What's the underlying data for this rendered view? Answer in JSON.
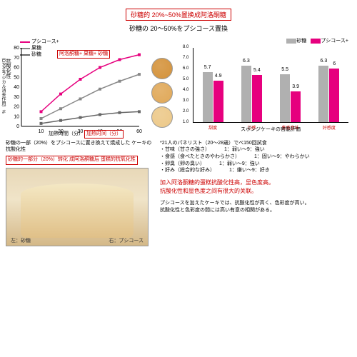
{
  "title_cn": "砂糖的 20%~50%置换成阿洛酮糖",
  "title_jp": "砂糖の 20～50%をプシコース置換",
  "line_chart": {
    "type": "line",
    "xlim": [
      0,
      60
    ],
    "ylim": [
      0,
      80
    ],
    "xstep": 10,
    "ystep": 10,
    "xlabel": "加熱時間（分）",
    "xlabel_cn": "加热时间（分）",
    "ylabel": "抗酸化性",
    "ylabel_sub": "（DPPHラジカル消去作用）%",
    "series": [
      {
        "name": "プシコース+",
        "color": "#e6007e",
        "marker": "square",
        "x": [
          10,
          20,
          30,
          40,
          50,
          60
        ],
        "y": [
          15,
          33,
          48,
          60,
          68,
          73
        ]
      },
      {
        "name": "果糖",
        "color": "#888888",
        "marker": "triangle",
        "x": [
          10,
          20,
          30,
          40,
          50,
          60
        ],
        "y": [
          8,
          18,
          28,
          38,
          46,
          53
        ]
      },
      {
        "name": "砂糖",
        "color": "#666666",
        "marker": "diamond",
        "x": [
          10,
          20,
          30,
          40,
          50,
          60
        ],
        "y": [
          3,
          6,
          9,
          12,
          14,
          15
        ]
      }
    ],
    "legend_box_cn": "阿洛酮糖+\n果糖+\n砂糖",
    "cake_colors": [
      "#d4923a",
      "#e0a858",
      "#ecc888"
    ]
  },
  "caption_jp": "砂糖の一部（20%）をプシコースに置き換えて焼成した\nケーキの抗酸化性",
  "caption_box_cn": "砂糖的一部分（20%）转化 成阿洛酮糖后\n蛋糕的抗氧化性",
  "bar_chart": {
    "type": "bar",
    "ylim": [
      1,
      8
    ],
    "ystep": 1,
    "legend": [
      {
        "name": "砂糖",
        "color": "#b0b0b0"
      },
      {
        "name": "プシコース+",
        "color": "#e6007e"
      }
    ],
    "categories": [
      "甜度",
      "口感",
      "焦香意味",
      "好感度"
    ],
    "pairs": [
      [
        5.7,
        4.9
      ],
      [
        6.3,
        5.4
      ],
      [
        5.5,
        3.9
      ],
      [
        6.3,
        6.0
      ]
    ],
    "xlabel": "スポンジケーキの官能評価"
  },
  "panel_note": "*21人のパネリスト（20～28歳）でべ150回試食",
  "bullets": [
    {
      "l": "甘味（甘さの強さ）",
      "r": "1：弱い～9：強い"
    },
    {
      "l": "食感（食べたときのやわらかさ）",
      "r": "1：固い～9：やわらかい"
    },
    {
      "l": "卵臭（卵の臭い）",
      "r": "1：弱い～9：強い"
    },
    {
      "l": "好み（総合的な好み）",
      "r": "1：嫌い～9：好き"
    }
  ],
  "photo": {
    "left_label": "左：砂糖",
    "right_label": "右：プシコース"
  },
  "red_lines": [
    "加入阿洛酮糖的蛋糕抗酸化性高，显色度高。",
    "抗酸化性和显色度之间有很大的关联。"
  ],
  "footer": [
    "プシコースを加えたケーキでは、抗酸化性が高く、色彩度が高い。",
    "抗酸化性と色彩度の間には高い有意の相関がある。"
  ]
}
